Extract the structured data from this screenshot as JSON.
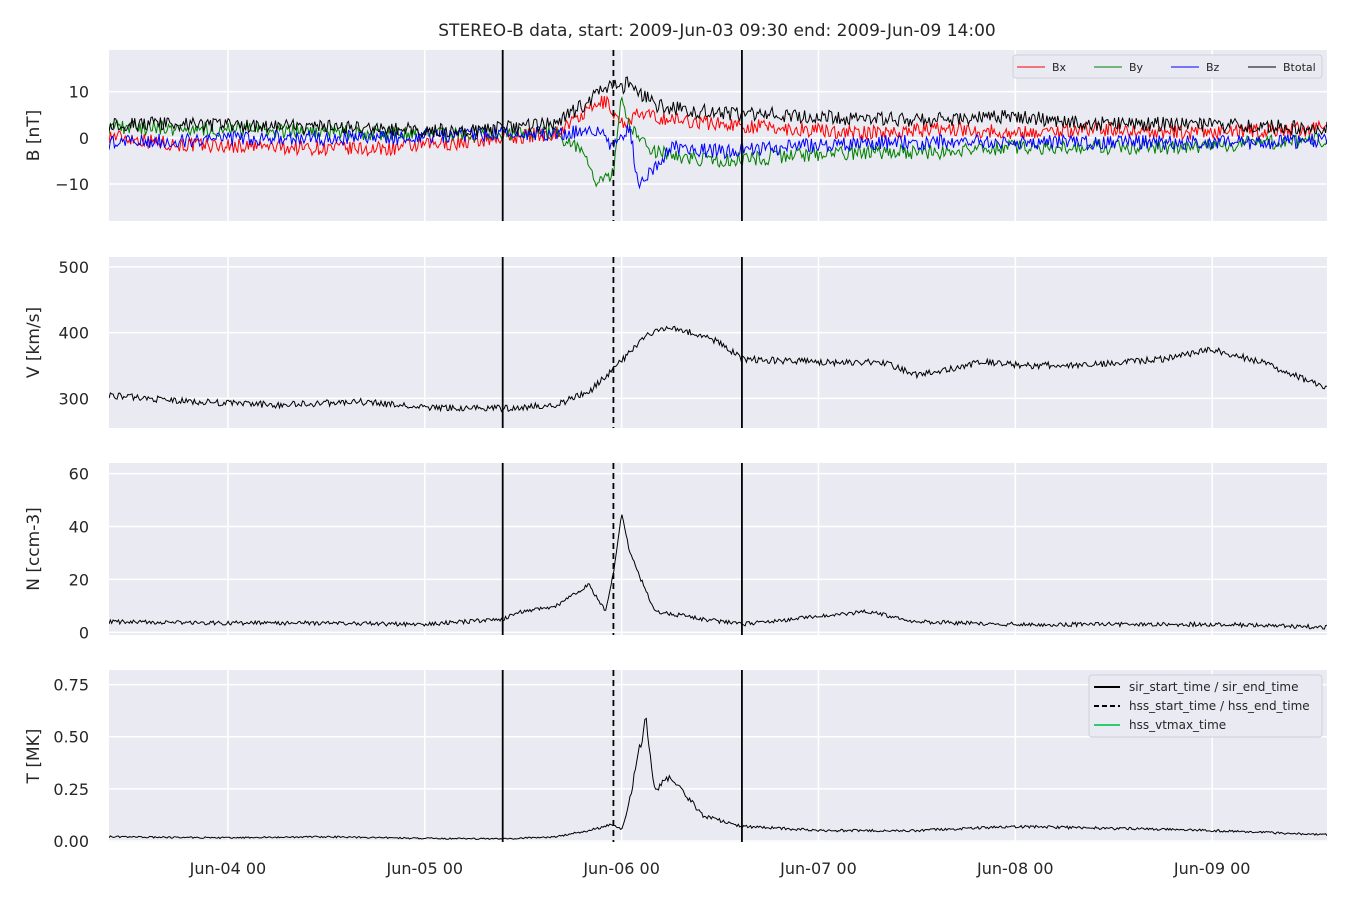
{
  "chart_data": {
    "type": "line",
    "title": "STEREO-B data, start: 2009-Jun-03 09:30  end: 2009-Jun-09 14:00",
    "x_range": [
      "2009-06-03 09:30",
      "2009-06-09 14:00"
    ],
    "x_ticks": [
      {
        "t": "2009-06-04 00:00",
        "label": "Jun-04 00"
      },
      {
        "t": "2009-06-05 00:00",
        "label": "Jun-05 00"
      },
      {
        "t": "2009-06-06 00:00",
        "label": "Jun-06 00"
      },
      {
        "t": "2009-06-07 00:00",
        "label": "Jun-07 00"
      },
      {
        "t": "2009-06-08 00:00",
        "label": "Jun-08 00"
      },
      {
        "t": "2009-06-09 00:00",
        "label": "Jun-09 00"
      }
    ],
    "grid": true,
    "event_lines": [
      {
        "t": "2009-06-05 09:30",
        "style": "solid"
      },
      {
        "t": "2009-06-05 23:00",
        "style": "dashed"
      },
      {
        "t": "2009-06-06 14:40",
        "style": "solid"
      }
    ],
    "event_legend": [
      {
        "label": "sir_start_time / sir_end_time",
        "style": "solid",
        "color": "#000000"
      },
      {
        "label": "hss_start_time / hss_end_time",
        "style": "dashed",
        "color": "#000000"
      },
      {
        "label": "hss_vtmax_time",
        "style": "solid",
        "color": "#2ecc71"
      }
    ],
    "panels": [
      {
        "id": "B",
        "ylabel": "B [nT]",
        "ylim": [
          -18,
          19
        ],
        "yticks": [
          {
            "v": -10,
            "label": "−10"
          },
          {
            "v": 0,
            "label": "0"
          },
          {
            "v": 10,
            "label": "10"
          }
        ],
        "legend_position": "top-right",
        "series": [
          {
            "name": "Bx",
            "color": "#ff0000",
            "x": [
              "2009-06-03 09:30",
              "2009-06-03 18:00",
              "2009-06-04 06:00",
              "2009-06-04 18:00",
              "2009-06-05 04:00",
              "2009-06-05 09:30",
              "2009-06-05 16:00",
              "2009-06-05 20:00",
              "2009-06-05 22:00",
              "2009-06-06 00:00",
              "2009-06-06 02:00",
              "2009-06-06 06:00",
              "2009-06-06 12:00",
              "2009-06-06 20:00",
              "2009-06-07 06:00",
              "2009-06-07 16:00",
              "2009-06-08 00:00",
              "2009-06-08 10:00",
              "2009-06-08 20:00",
              "2009-06-09 06:00",
              "2009-06-09 14:00"
            ],
            "y": [
              0.5,
              -1.5,
              -2,
              -2.5,
              -1,
              0,
              1,
              6,
              8,
              3,
              5,
              4,
              3,
              2,
              1,
              2,
              1,
              2,
              1,
              1.5,
              2
            ]
          },
          {
            "name": "By",
            "color": "#008000",
            "x": [
              "2009-06-03 09:30",
              "2009-06-03 18:00",
              "2009-06-04 06:00",
              "2009-06-04 18:00",
              "2009-06-05 04:00",
              "2009-06-05 09:30",
              "2009-06-05 16:00",
              "2009-06-05 19:00",
              "2009-06-05 21:00",
              "2009-06-05 23:00",
              "2009-06-06 00:00",
              "2009-06-06 01:00",
              "2009-06-06 03:00",
              "2009-06-06 06:00",
              "2009-06-06 12:00",
              "2009-06-06 20:00",
              "2009-06-07 06:00",
              "2009-06-07 16:00",
              "2009-06-08 00:00",
              "2009-06-08 10:00",
              "2009-06-08 20:00",
              "2009-06-09 06:00",
              "2009-06-09 14:00"
            ],
            "y": [
              2.5,
              2,
              1.5,
              1,
              0.5,
              1,
              1,
              -3,
              -10,
              -8,
              10,
              2,
              -2,
              -4,
              -5,
              -4,
              -3,
              -3,
              -2,
              -2,
              -2,
              -1,
              -0.5
            ]
          },
          {
            "name": "Bz",
            "color": "#0000ff",
            "x": [
              "2009-06-03 09:30",
              "2009-06-03 18:00",
              "2009-06-04 06:00",
              "2009-06-04 18:00",
              "2009-06-05 04:00",
              "2009-06-05 09:30",
              "2009-06-05 16:00",
              "2009-06-05 21:00",
              "2009-06-05 23:00",
              "2009-06-06 01:00",
              "2009-06-06 02:00",
              "2009-06-06 06:00",
              "2009-06-06 12:00",
              "2009-06-06 20:00",
              "2009-06-07 06:00",
              "2009-06-07 16:00",
              "2009-06-08 00:00",
              "2009-06-08 10:00",
              "2009-06-08 20:00",
              "2009-06-09 06:00",
              "2009-06-09 14:00"
            ],
            "y": [
              -1,
              -0.5,
              0,
              0,
              0.5,
              1,
              1,
              2,
              -2,
              3,
              -11,
              -2,
              -3,
              -2,
              -1,
              -1,
              -1,
              -1,
              -1,
              -1,
              -0.5
            ]
          },
          {
            "name": "Btotal",
            "color": "#000000",
            "x": [
              "2009-06-03 09:30",
              "2009-06-03 18:00",
              "2009-06-04 06:00",
              "2009-06-04 18:00",
              "2009-06-05 04:00",
              "2009-06-05 09:30",
              "2009-06-05 16:00",
              "2009-06-05 20:00",
              "2009-06-05 22:00",
              "2009-06-06 00:00",
              "2009-06-06 01:00",
              "2009-06-06 04:00",
              "2009-06-06 08:00",
              "2009-06-06 14:00",
              "2009-06-06 20:00",
              "2009-06-07 06:00",
              "2009-06-07 16:00",
              "2009-06-08 00:00",
              "2009-06-08 10:00",
              "2009-06-08 20:00",
              "2009-06-09 06:00",
              "2009-06-09 14:00"
            ],
            "y": [
              3,
              3,
              2.5,
              2,
              1.5,
              2,
              3,
              8,
              11,
              11,
              12,
              7,
              6,
              5,
              5,
              4,
              4,
              4.5,
              3,
              3,
              2.5,
              2
            ]
          }
        ]
      },
      {
        "id": "V",
        "ylabel": "V [km/s]",
        "ylim": [
          255,
          515
        ],
        "yticks": [
          {
            "v": 300,
            "label": "300"
          },
          {
            "v": 400,
            "label": "400"
          },
          {
            "v": 500,
            "label": "500"
          }
        ],
        "series": [
          {
            "name": "",
            "color": "#000000",
            "x": [
              "2009-06-03 09:30",
              "2009-06-03 18:00",
              "2009-06-04 06:00",
              "2009-06-04 16:00",
              "2009-06-05 00:00",
              "2009-06-05 09:30",
              "2009-06-05 16:00",
              "2009-06-05 20:00",
              "2009-06-05 23:00",
              "2009-06-06 03:00",
              "2009-06-06 06:00",
              "2009-06-06 12:00",
              "2009-06-06 14:40",
              "2009-06-07 00:00",
              "2009-06-07 08:00",
              "2009-06-07 12:00",
              "2009-06-07 20:00",
              "2009-06-08 02:00",
              "2009-06-08 10:00",
              "2009-06-08 18:00",
              "2009-06-09 00:00",
              "2009-06-09 06:00",
              "2009-06-09 14:00"
            ],
            "y": [
              305,
              296,
              290,
              295,
              286,
              285,
              290,
              310,
              345,
              395,
              410,
              385,
              360,
              355,
              355,
              335,
              355,
              350,
              352,
              360,
              375,
              355,
              315
            ]
          }
        ]
      },
      {
        "id": "N",
        "ylabel": "N [ccm-3]",
        "ylim": [
          -1,
          64
        ],
        "yticks": [
          {
            "v": 0,
            "label": "0"
          },
          {
            "v": 20,
            "label": "20"
          },
          {
            "v": 40,
            "label": "40"
          },
          {
            "v": 60,
            "label": "60"
          }
        ],
        "series": [
          {
            "name": "",
            "color": "#000000",
            "x": [
              "2009-06-03 09:30",
              "2009-06-04 00:00",
              "2009-06-04 12:00",
              "2009-06-05 00:00",
              "2009-06-05 09:30",
              "2009-06-05 12:00",
              "2009-06-05 16:00",
              "2009-06-05 20:00",
              "2009-06-05 22:00",
              "2009-06-05 23:00",
              "2009-06-06 00:00",
              "2009-06-06 01:00",
              "2009-06-06 04:00",
              "2009-06-06 10:00",
              "2009-06-06 14:40",
              "2009-06-07 00:00",
              "2009-06-07 06:00",
              "2009-06-07 12:00",
              "2009-06-08 00:00",
              "2009-06-08 12:00",
              "2009-06-09 00:00",
              "2009-06-09 14:00"
            ],
            "y": [
              4,
              3.5,
              3.5,
              3,
              5,
              8,
              10,
              18,
              8,
              22,
              45,
              30,
              8,
              5,
              3,
              6,
              8,
              4,
              3,
              3,
              3,
              2
            ]
          }
        ]
      },
      {
        "id": "T",
        "ylabel": "T [MK]",
        "ylim": [
          -0.005,
          0.82
        ],
        "yticks": [
          {
            "v": 0.0,
            "label": "0.00"
          },
          {
            "v": 0.25,
            "label": "0.25"
          },
          {
            "v": 0.5,
            "label": "0.50"
          },
          {
            "v": 0.75,
            "label": "0.75"
          }
        ],
        "legend_position": "top-right",
        "series": [
          {
            "name": "",
            "color": "#000000",
            "x": [
              "2009-06-03 09:30",
              "2009-06-04 00:00",
              "2009-06-04 12:00",
              "2009-06-05 00:00",
              "2009-06-05 09:30",
              "2009-06-05 16:00",
              "2009-06-05 20:00",
              "2009-06-05 23:00",
              "2009-06-06 00:00",
              "2009-06-06 01:00",
              "2009-06-06 03:00",
              "2009-06-06 04:00",
              "2009-06-06 06:00",
              "2009-06-06 10:00",
              "2009-06-06 14:40",
              "2009-06-07 00:00",
              "2009-06-07 12:00",
              "2009-06-08 00:00",
              "2009-06-08 12:00",
              "2009-06-09 00:00",
              "2009-06-09 14:00"
            ],
            "y": [
              0.02,
              0.015,
              0.02,
              0.012,
              0.01,
              0.02,
              0.05,
              0.08,
              0.05,
              0.2,
              0.6,
              0.25,
              0.3,
              0.12,
              0.07,
              0.05,
              0.05,
              0.07,
              0.06,
              0.05,
              0.03
            ]
          }
        ]
      }
    ]
  }
}
